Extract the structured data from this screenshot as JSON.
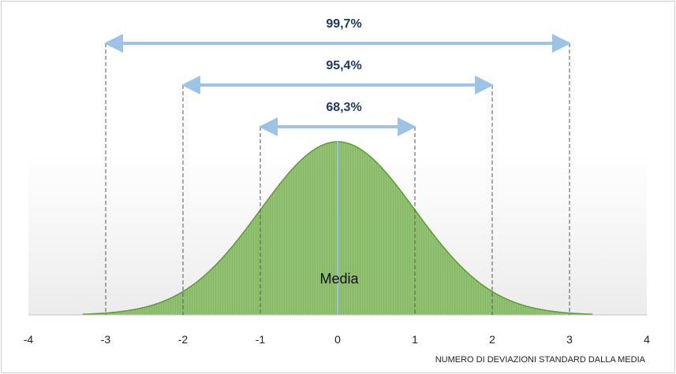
{
  "chart_data": {
    "type": "area",
    "distribution": "normal",
    "mean": 0,
    "sd": 1,
    "xlim": [
      -4,
      4
    ],
    "x_ticks": [
      "-4",
      "-3",
      "-2",
      "-1",
      "0",
      "1",
      "2",
      "3",
      "4"
    ],
    "xlabel": "NUMERO DI DEVIAZIONI STANDARD DALLA MEDIA",
    "mean_label": "Media",
    "intervals": [
      {
        "from": -1,
        "to": 1,
        "label": "68,3%"
      },
      {
        "from": -2,
        "to": 2,
        "label": "95,4%"
      },
      {
        "from": -3,
        "to": 3,
        "label": "99,7%"
      }
    ],
    "colors": {
      "fill": "#8cbf6a",
      "stroke": "#5e9a3a",
      "arrow": "#9dc3e6",
      "mean_line": "#9dc3e6",
      "label": "#1f3864"
    }
  }
}
